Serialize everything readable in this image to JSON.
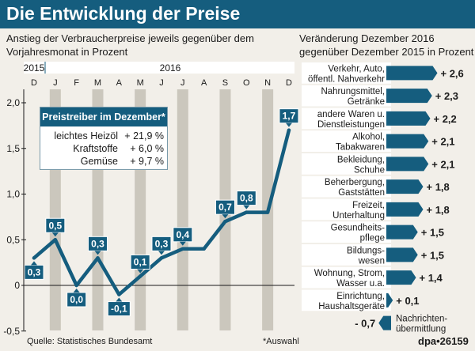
{
  "header": {
    "title": "Die Entwicklung der Preise"
  },
  "left": {
    "subtitle_line1": "Anstieg der Verbraucherpreise jeweils gegenüber dem",
    "subtitle_line2": "Vorjahresmonat in Prozent",
    "year_labels": [
      "2015",
      "2016"
    ]
  },
  "right": {
    "subtitle_line1": "Veränderung Dezember 2016",
    "subtitle_line2": "gegenüber Dezember 2015 in Prozent"
  },
  "infobox": {
    "title": "Preistreiber im Dezember*",
    "rows": [
      {
        "name": "leichtes Heizöl",
        "value": "+ 21,9 %"
      },
      {
        "name": "Kraftstoffe",
        "value": "+ 6,0 %"
      },
      {
        "name": "Gemüse",
        "value": "+ 9,7 %"
      }
    ]
  },
  "footer": {
    "source": "Quelle: Statistisches Bundesamt",
    "footnote": "*Auswahl",
    "credit": "dpa•26159"
  },
  "colors": {
    "primary": "#155d7e",
    "stripe": "#cbc7bd",
    "background": "#f2efe9",
    "barbox": "#ffffff"
  },
  "chart_data": [
    {
      "type": "line",
      "title": "Anstieg der Verbraucherpreise jeweils gegenüber dem Vorjahresmonat in Prozent",
      "categories": [
        "D",
        "J",
        "F",
        "M",
        "A",
        "M",
        "J",
        "J",
        "A",
        "S",
        "O",
        "N",
        "D"
      ],
      "values": [
        0.3,
        0.5,
        0.0,
        0.3,
        -0.1,
        0.1,
        0.3,
        0.4,
        0.4,
        0.7,
        0.8,
        0.8,
        1.7
      ],
      "value_labels": [
        "0,3",
        "0,5",
        "0,0",
        "0,3",
        "-0,1",
        "0,1",
        "0,3",
        "0,4",
        null,
        "0,7",
        "0,8",
        null,
        "1,7"
      ],
      "y_ticks": [
        2.0,
        1.5,
        1.0,
        0.5,
        0,
        -0.5
      ],
      "y_tick_labels": [
        "2,0",
        "1,5",
        "1,0",
        "0,5",
        "0",
        "-0,5"
      ],
      "ylim": [
        -0.5,
        2.1
      ],
      "xlabel": "",
      "ylabel": ""
    },
    {
      "type": "bar",
      "orientation": "horizontal",
      "title": "Veränderung Dezember 2016 gegenüber Dezember 2015 in Prozent",
      "categories": [
        [
          "Verkehr, Auto,",
          "öffentl. Nahverkehr"
        ],
        [
          "Nahrungsmittel,",
          "Getränke"
        ],
        [
          "andere Waren u.",
          "Dienstleistungen"
        ],
        [
          "Alkohol,",
          "Tabakwaren"
        ],
        [
          "Bekleidung,",
          "Schuhe"
        ],
        [
          "Beherbergung,",
          "Gaststätten"
        ],
        [
          "Freizeit,",
          "Unterhaltung"
        ],
        [
          "Gesundheits-",
          "pflege"
        ],
        [
          "Bildungs-",
          "wesen"
        ],
        [
          "Wohnung, Strom,",
          "Wasser u.a."
        ],
        [
          "Einrichtung,",
          "Haushaltsgeräte"
        ],
        [
          "Nachrichten-",
          "übermittlung"
        ]
      ],
      "values": [
        2.6,
        2.3,
        2.2,
        2.1,
        2.1,
        1.8,
        1.8,
        1.5,
        1.5,
        1.4,
        0.1,
        -0.7
      ],
      "value_labels": [
        "+ 2,6",
        "+ 2,3",
        "+ 2,2",
        "+ 2,1",
        "+ 2,1",
        "+ 1,8",
        "+ 1,8",
        "+ 1,5",
        "+ 1,5",
        "+ 1,4",
        "+ 0,1",
        "- 0,7"
      ]
    }
  ]
}
